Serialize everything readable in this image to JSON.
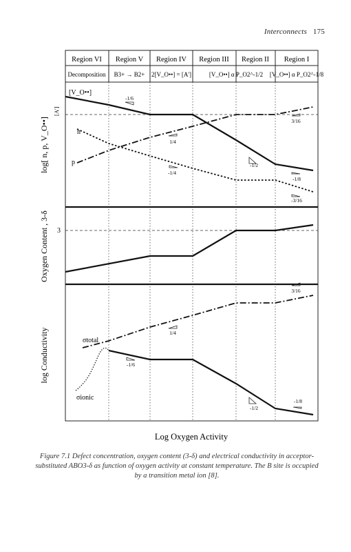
{
  "page_header": {
    "title": "Interconnects",
    "page_number": "175"
  },
  "figure": {
    "regions": [
      "Region VI",
      "Region V",
      "Region IV",
      "Region III",
      "Region II",
      "Region I"
    ],
    "region_conditions": [
      "Decomposition",
      "B3+ → B2+",
      "2[V_O••] = [A']",
      "[V_O••] α P_O2^-1/2",
      "[V_O••] α P_O2^-1/8"
    ],
    "species_labels": {
      "vo": "[V_O••]",
      "a": "[A']",
      "n": "n",
      "p": "p",
      "total": "σtotal",
      "ionic": "σionic"
    },
    "y_axis_labels": [
      "log[ n, p, V_O••]",
      "Oxygen Content , 3-δ",
      "log Conductivity"
    ],
    "y_tick_oxygen": "3",
    "x_axis_label": "Log Oxygen Activity",
    "slope_labels": {
      "top_vo_left": "-1/6",
      "top_n_mid": "-1/4",
      "top_p_mid": "1/4",
      "top_vo_right": "-1/2",
      "top_p_right": "3/16",
      "top_vo_far": "-1/8",
      "top_n_far": "-3/16",
      "bottom_total_mid": "1/4",
      "bottom_total_right": "3/16",
      "bottom_ionic_left": "-1/6",
      "bottom_ionic_mid": "-1/2",
      "bottom_ionic_right": "-1/8"
    }
  },
  "caption": {
    "label": "Figure 7.1",
    "text": "Defect concentration, oxygen content (3-δ) and electrical conductivity in acceptor-substituted ABO3-δ as function of oxygen activity at constant temperature. The B site is occupied by a transition metal ion [8]."
  }
}
